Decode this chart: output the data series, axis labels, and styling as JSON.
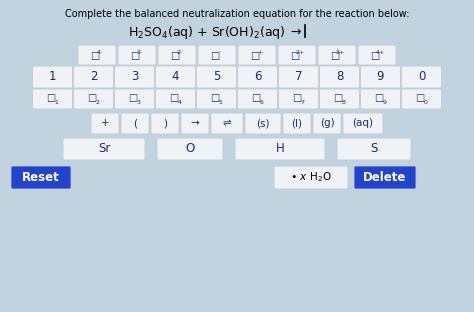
{
  "title_text": "Complete the balanced neutralization equation for the reaction below:",
  "equation_parts": [
    "H₂SO₄(aq) + Sr(OH)₂(aq) →"
  ],
  "bg_color": "#c2d3e0",
  "button_bg": "#f0f3f5",
  "button_border": "#c0ccd4",
  "text_color": "#1a2a7a",
  "blue_btn_color": "#2244cc",
  "blue_btn_text": "#ffffff",
  "sup_labels": [
    "4-",
    "3-",
    "2-",
    "-",
    "+",
    "2+",
    "3+",
    "4+"
  ],
  "row2_numbers": [
    "1",
    "2",
    "3",
    "4",
    "5",
    "6",
    "7",
    "8",
    "9",
    "0"
  ],
  "row3_subscripts": [
    "1",
    "2",
    "3",
    "4",
    "5",
    "6",
    "7",
    "8",
    "9",
    "0"
  ],
  "row4_symbols": [
    "+",
    "(",
    ")",
    "→",
    "⇌",
    "(s)",
    "(l)",
    "(g)",
    "(aq)"
  ],
  "row5_elements": [
    "Sr",
    "O",
    "H",
    "S"
  ],
  "reset_label": "Reset",
  "water_label": "• α H₂O",
  "delete_label": "Delete"
}
